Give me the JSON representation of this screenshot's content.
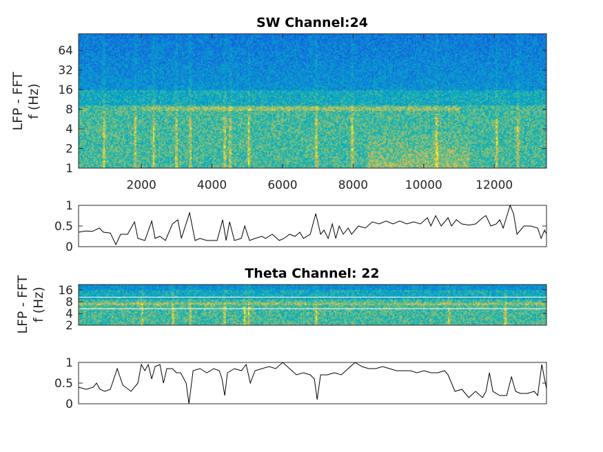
{
  "chart_data": [
    {
      "id": "sw-spectrogram",
      "type": "heatmap",
      "title": "SW Channel:24",
      "ylabel": [
        "LFP - FFT",
        "f (Hz)"
      ],
      "xlabel": "",
      "yscale": "log2",
      "xlim": [
        220,
        13480
      ],
      "ylim": [
        1,
        115
      ],
      "xticks": [
        2000,
        4000,
        6000,
        8000,
        10000,
        12000
      ],
      "xtick_labels": [
        "2000",
        "4000",
        "6000",
        "8000",
        "10000",
        "12000"
      ],
      "yticks": [
        1,
        2,
        4,
        8,
        16,
        32,
        64
      ],
      "ytick_labels": [
        "1",
        "2",
        "4",
        "8",
        "16",
        "32",
        "64"
      ],
      "colormap": "parula",
      "band_hz": 8,
      "band_range": [
        2000,
        11000
      ],
      "burst_x": [
        926,
        1805,
        2332,
        2976,
        3367,
        4343,
        4500,
        5027,
        6941,
        7957,
        10350,
        12050,
        12650
      ],
      "bright_region": [
        8400,
        11300
      ]
    },
    {
      "id": "sw-line",
      "type": "line",
      "xlim": [
        220,
        13480
      ],
      "ylim": [
        0,
        1
      ],
      "yticks": [
        0,
        0.5,
        1
      ],
      "ytick_labels": [
        "0",
        "0.5",
        "1"
      ],
      "x": [
        223,
        418,
        613,
        809,
        926,
        1121,
        1277,
        1414,
        1609,
        1805,
        1902,
        2098,
        2293,
        2390,
        2527,
        2683,
        2879,
        3035,
        3133,
        3367,
        3523,
        3660,
        3855,
        4148,
        4304,
        4402,
        4500,
        4636,
        4832,
        4929,
        5066,
        5222,
        5418,
        5515,
        5711,
        5906,
        6043,
        6199,
        6355,
        6492,
        6590,
        6785,
        6941,
        7078,
        7176,
        7293,
        7410,
        7508,
        7605,
        7722,
        7859,
        7957,
        8152,
        8347,
        8543,
        8738,
        8933,
        9129,
        9324,
        9519,
        9715,
        9910,
        10105,
        10203,
        10340,
        10496,
        10691,
        10789,
        10926,
        11082,
        11277,
        11473,
        11668,
        11766,
        11902,
        12058,
        12156,
        12254,
        12449,
        12547,
        12645,
        12840,
        13035,
        13231,
        13328,
        13426,
        13484
      ],
      "y": [
        0.35,
        0.38,
        0.37,
        0.45,
        0.35,
        0.33,
        0.05,
        0.3,
        0.3,
        0.6,
        0.2,
        0.15,
        0.62,
        0.2,
        0.25,
        0.15,
        0.55,
        0.65,
        0.2,
        0.82,
        0.15,
        0.2,
        0.15,
        0.15,
        0.65,
        0.15,
        0.6,
        0.15,
        0.2,
        0.5,
        0.15,
        0.2,
        0.25,
        0.2,
        0.3,
        0.15,
        0.2,
        0.3,
        0.25,
        0.35,
        0.2,
        0.3,
        0.8,
        0.3,
        0.4,
        0.2,
        0.55,
        0.2,
        0.5,
        0.3,
        0.45,
        0.3,
        0.5,
        0.45,
        0.6,
        0.55,
        0.62,
        0.55,
        0.62,
        0.55,
        0.6,
        0.55,
        0.7,
        0.5,
        0.75,
        0.5,
        0.7,
        0.5,
        0.65,
        0.55,
        0.52,
        0.55,
        0.7,
        0.75,
        0.5,
        0.55,
        0.65,
        0.45,
        1.0,
        0.8,
        0.3,
        0.5,
        0.5,
        0.45,
        0.2,
        0.4,
        0.3
      ]
    },
    {
      "id": "theta-spectrogram",
      "type": "heatmap",
      "title": "Theta Channel: 22",
      "ylabel": [
        "LFP - FFT",
        "f (Hz)"
      ],
      "yscale": "log2",
      "xlim": [
        220,
        13480
      ],
      "ylim": [
        2,
        22
      ],
      "yticks": [
        2,
        4,
        8,
        16
      ],
      "ytick_labels": [
        "2",
        "4",
        "8",
        "16"
      ],
      "hlines_hz": [
        5.3,
        10.5
      ],
      "colormap": "parula",
      "band_hz": 7,
      "burst_x": [
        2000,
        2879,
        3367,
        4343,
        4900,
        5027,
        6941,
        10700,
        12300
      ]
    },
    {
      "id": "theta-line",
      "type": "line",
      "xlim": [
        220,
        13480
      ],
      "ylim": [
        0,
        1
      ],
      "yticks": [
        0,
        0.5,
        1
      ],
      "ytick_labels": [
        "0",
        "0.5",
        "1"
      ],
      "x": [
        223,
        437,
        633,
        730,
        828,
        965,
        1121,
        1316,
        1473,
        1707,
        1902,
        2000,
        2098,
        2195,
        2293,
        2390,
        2527,
        2625,
        2722,
        2879,
        2996,
        3113,
        3269,
        3348,
        3465,
        3660,
        3855,
        4050,
        4207,
        4285,
        4363,
        4441,
        4636,
        4832,
        4969,
        5086,
        5222,
        5418,
        5613,
        5808,
        6004,
        6199,
        6394,
        6590,
        6785,
        6902,
        6980,
        7078,
        7273,
        7469,
        7664,
        7859,
        8054,
        8250,
        8445,
        8640,
        8836,
        9031,
        9226,
        9422,
        9617,
        9812,
        10008,
        10203,
        10398,
        10594,
        10691,
        10887,
        11082,
        11277,
        11473,
        11668,
        11766,
        11863,
        11961,
        12156,
        12351,
        12488,
        12605,
        12742,
        12937,
        13133,
        13231,
        13348,
        13426,
        13484
      ],
      "y": [
        0.4,
        0.35,
        0.4,
        0.5,
        0.35,
        0.3,
        0.35,
        0.85,
        0.45,
        0.3,
        0.5,
        0.95,
        0.8,
        0.95,
        0.6,
        0.9,
        0.95,
        0.5,
        0.85,
        0.85,
        0.75,
        0.75,
        0.5,
        0.0,
        0.8,
        0.85,
        0.75,
        0.85,
        0.8,
        0.6,
        0.2,
        0.75,
        0.85,
        0.8,
        0.95,
        0.5,
        0.8,
        0.85,
        0.9,
        0.85,
        1.0,
        0.85,
        0.7,
        0.75,
        0.7,
        0.6,
        0.1,
        0.7,
        0.7,
        0.75,
        0.7,
        0.85,
        1.0,
        0.9,
        0.85,
        0.85,
        0.9,
        0.85,
        0.8,
        0.8,
        0.8,
        0.75,
        0.8,
        0.75,
        0.75,
        0.8,
        0.7,
        0.3,
        0.35,
        0.15,
        0.3,
        0.15,
        0.3,
        0.75,
        0.3,
        0.2,
        0.2,
        0.65,
        0.3,
        0.25,
        0.25,
        0.3,
        0.2,
        0.95,
        0.6,
        0.35
      ]
    }
  ]
}
